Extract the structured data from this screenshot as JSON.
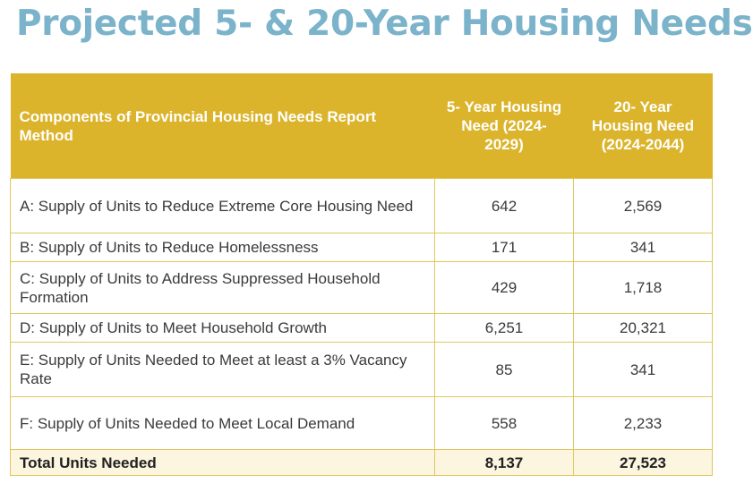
{
  "title": "Projected 5- & 20-Year Housing Needs",
  "table": {
    "headers": [
      "Components of Provincial Housing Needs Report Method",
      "5- Year Housing Need (2024-2029)",
      "20- Year Housing Need (2024-2044)"
    ],
    "rows": [
      {
        "label": "A: Supply of Units to Reduce Extreme Core Housing Need",
        "five_year": "642",
        "twenty_year": "2,569"
      },
      {
        "label": "B: Supply of Units to Reduce Homelessness",
        "five_year": "171",
        "twenty_year": "341"
      },
      {
        "label": "C: Supply of Units to Address Suppressed Household Formation",
        "five_year": "429",
        "twenty_year": "1,718"
      },
      {
        "label": "D: Supply of Units to Meet Household Growth",
        "five_year": "6,251",
        "twenty_year": "20,321"
      },
      {
        "label": "E: Supply of Units Needed to Meet at least a 3% Vacancy Rate",
        "five_year": "85",
        "twenty_year": "341"
      },
      {
        "label": "F: Supply of Units Needed to Meet Local Demand",
        "five_year": "558",
        "twenty_year": "2,233"
      }
    ],
    "total": {
      "label": "Total Units Needed",
      "five_year": "8,137",
      "twenty_year": "27,523"
    }
  },
  "colors": {
    "title": "#7bb3cb",
    "header_bg": "#dbb42c",
    "border": "#e0c75c",
    "total_bg": "#fcf5df"
  }
}
